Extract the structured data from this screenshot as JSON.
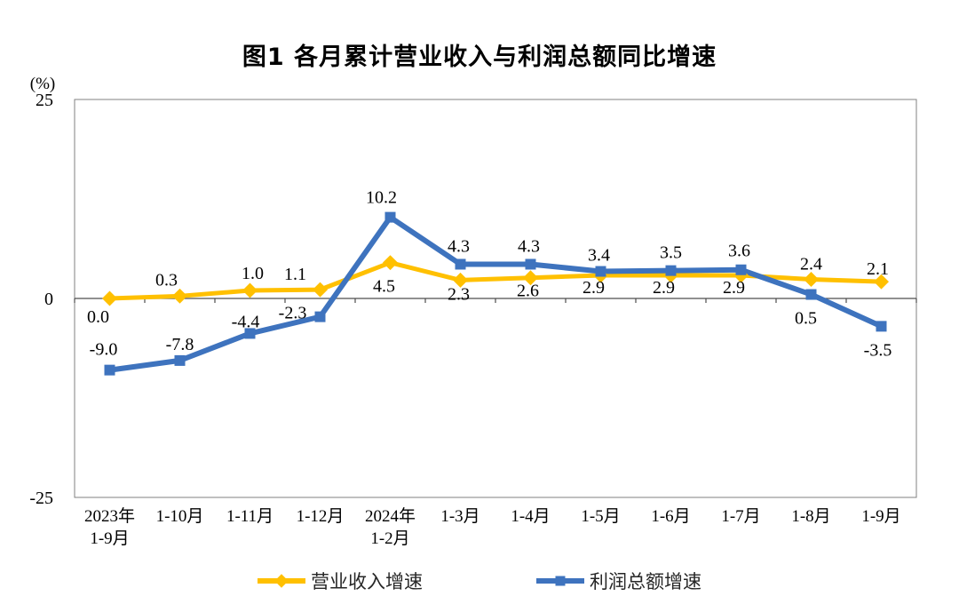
{
  "title": "图1 各月累计营业收入与利润总额同比增速",
  "chart_data": {
    "type": "line",
    "title": "图1 各月累计营业收入与利润总额同比增速",
    "unit_label": "(%)",
    "categories": [
      [
        "2023年",
        "1-9月"
      ],
      [
        "1-10月"
      ],
      [
        "1-11月"
      ],
      [
        "1-12月"
      ],
      [
        "2024年",
        "1-2月"
      ],
      [
        "1-3月"
      ],
      [
        "1-4月"
      ],
      [
        "1-5月"
      ],
      [
        "1-6月"
      ],
      [
        "1-7月"
      ],
      [
        "1-8月"
      ],
      [
        "1-9月"
      ]
    ],
    "series": [
      {
        "name": "营业收入增速",
        "color": "#FFC000",
        "marker": "diamond",
        "line_width": 5,
        "values": [
          0.0,
          0.3,
          1.0,
          1.1,
          4.5,
          2.3,
          2.6,
          2.9,
          2.9,
          2.9,
          2.4,
          2.1
        ],
        "labels": [
          "0.0",
          "0.3",
          "1.0",
          "1.1",
          "4.5",
          "2.3",
          "2.6",
          "2.9",
          "2.9",
          "2.9",
          "2.4",
          "2.1"
        ],
        "label_offsets": [
          [
            -13,
            20
          ],
          [
            -15,
            -19
          ],
          [
            3,
            -20
          ],
          [
            -28,
            -18
          ],
          [
            -7,
            26
          ],
          [
            -2,
            15
          ],
          [
            -3,
            14
          ],
          [
            -8,
            13
          ],
          [
            -8,
            13
          ],
          [
            -8,
            13
          ],
          [
            0,
            -18
          ],
          [
            -4,
            -15
          ]
        ]
      },
      {
        "name": "利润总额增速",
        "color": "#3E73BE",
        "marker": "square",
        "line_width": 6,
        "values": [
          -9.0,
          -7.8,
          -4.4,
          -2.3,
          10.2,
          4.3,
          4.3,
          3.4,
          3.5,
          3.6,
          0.5,
          -3.5
        ],
        "labels": [
          "-9.0",
          "-7.8",
          "-4.4",
          "-2.3",
          "10.2",
          "4.3",
          "4.3",
          "3.4",
          "3.5",
          "3.6",
          "0.5",
          "-3.5"
        ],
        "label_offsets": [
          [
            -7,
            -24
          ],
          [
            0,
            -19
          ],
          [
            -5,
            -14
          ],
          [
            -31,
            -5
          ],
          [
            -10,
            -23
          ],
          [
            -2,
            -21
          ],
          [
            -2,
            -21
          ],
          [
            -2,
            -19
          ],
          [
            0,
            -21
          ],
          [
            -2,
            -22
          ],
          [
            -6,
            26
          ],
          [
            -4,
            26
          ]
        ]
      }
    ],
    "y_axis": {
      "min": -25,
      "max": 25,
      "ticks": [
        25,
        0,
        -25
      ]
    },
    "grid": false,
    "legend_position": "bottom",
    "colors": {
      "axis_box": "#808080",
      "zero_axis": "#4d4d4d",
      "text": "#000000"
    }
  }
}
